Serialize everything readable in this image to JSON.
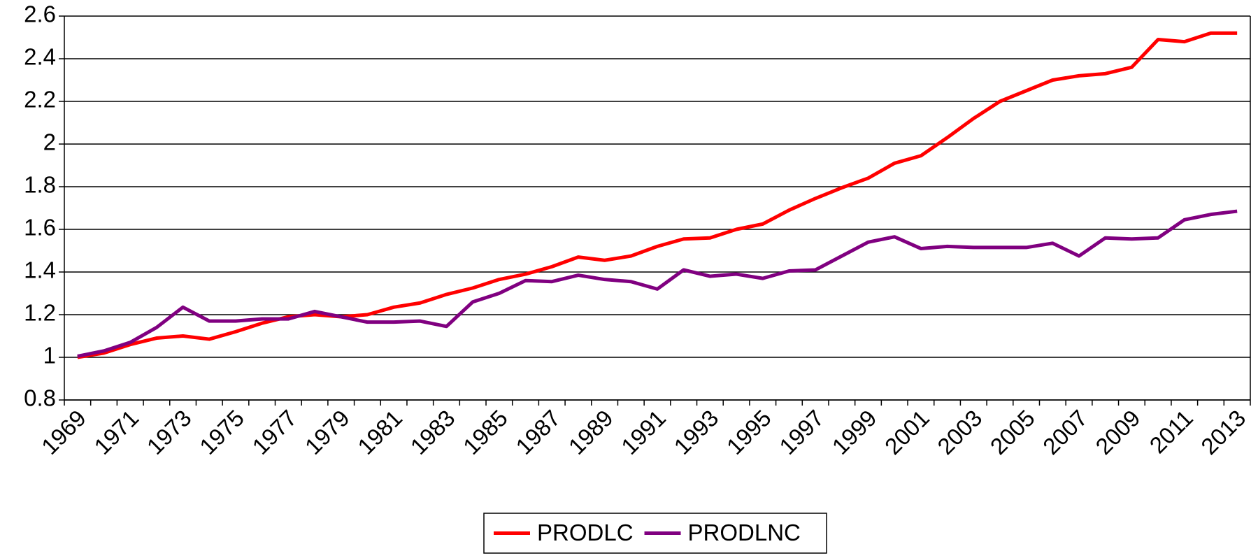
{
  "chart_data": {
    "type": "line",
    "categories": [
      "1969",
      null,
      "1971",
      null,
      "1973",
      null,
      "1975",
      null,
      "1977",
      null,
      "1979",
      null,
      "1981",
      null,
      "1983",
      null,
      "1985",
      null,
      "1987",
      null,
      "1989",
      null,
      "1991",
      null,
      "1993",
      null,
      "1995",
      null,
      "1997",
      null,
      "1999",
      null,
      "2001",
      null,
      "2003",
      null,
      "2005",
      null,
      "2007",
      null,
      "2009",
      null,
      "2011",
      null,
      "2013"
    ],
    "series": [
      {
        "name": "PRODLC",
        "color": "#ff0000",
        "values": [
          1.0,
          1.02,
          1.06,
          1.09,
          1.1,
          1.085,
          1.12,
          1.16,
          1.19,
          1.2,
          1.19,
          1.2,
          1.235,
          1.255,
          1.295,
          1.325,
          1.365,
          1.39,
          1.425,
          1.47,
          1.455,
          1.475,
          1.52,
          1.555,
          1.56,
          1.6,
          1.625,
          1.69,
          1.745,
          1.795,
          1.84,
          1.91,
          1.945,
          2.03,
          2.12,
          2.2,
          2.25,
          2.3,
          2.32,
          2.33,
          2.36,
          2.49,
          2.48,
          2.52,
          2.52
        ]
      },
      {
        "name": "PRODLNC",
        "color": "#800080",
        "values": [
          1.005,
          1.03,
          1.07,
          1.14,
          1.235,
          1.17,
          1.17,
          1.18,
          1.18,
          1.215,
          1.19,
          1.165,
          1.165,
          1.17,
          1.145,
          1.26,
          1.3,
          1.36,
          1.355,
          1.385,
          1.365,
          1.355,
          1.32,
          1.41,
          1.38,
          1.39,
          1.37,
          1.405,
          1.41,
          1.475,
          1.54,
          1.565,
          1.51,
          1.52,
          1.515,
          1.515,
          1.515,
          1.535,
          1.475,
          1.56,
          1.555,
          1.56,
          1.645,
          1.67,
          1.685
        ]
      }
    ],
    "ylim": [
      0.8,
      2.6
    ],
    "yticks": [
      0.8,
      1,
      1.2,
      1.4,
      1.6,
      1.8,
      2,
      2.2,
      2.4,
      2.6
    ],
    "grid": true,
    "legend": "bottom"
  }
}
